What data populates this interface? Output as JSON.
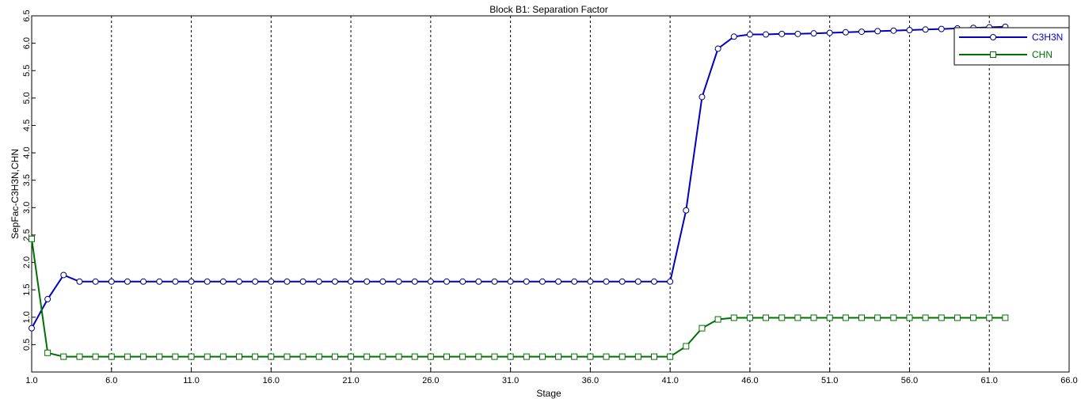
{
  "chart_data": {
    "type": "line",
    "title": "Block B1: Separation Factor",
    "xlabel": "Stage",
    "ylabel": "SepFac-C3H3N,CHN",
    "xlim": [
      1,
      66
    ],
    "ylim": [
      0,
      6.5
    ],
    "x_ticks": [
      "1.0",
      "6.0",
      "11.0",
      "16.0",
      "21.0",
      "26.0",
      "31.0",
      "36.0",
      "41.0",
      "46.0",
      "51.0",
      "56.0",
      "61.0",
      "66.0"
    ],
    "y_ticks": [
      "0.5",
      "1.0",
      "1.5",
      "2.0",
      "2.5",
      "3.0",
      "3.5",
      "4.0",
      "4.5",
      "5.0",
      "5.5",
      "6.0",
      "6.5"
    ],
    "grid": "vertical-dashed",
    "legend": "top-right",
    "series": [
      {
        "name": "C3H3N",
        "color": "#0000c0",
        "marker": "circle",
        "x": [
          1,
          2,
          3,
          4,
          5,
          6,
          7,
          8,
          9,
          10,
          11,
          12,
          13,
          14,
          15,
          16,
          17,
          18,
          19,
          20,
          21,
          22,
          23,
          24,
          25,
          26,
          27,
          28,
          29,
          30,
          31,
          32,
          33,
          34,
          35,
          36,
          37,
          38,
          39,
          40,
          41,
          42,
          43,
          44,
          45,
          46,
          47,
          48,
          49,
          50,
          51,
          52,
          53,
          54,
          55,
          56,
          57,
          58,
          59,
          60,
          61,
          62
        ],
        "values": [
          0.8,
          1.33,
          1.77,
          1.65,
          1.65,
          1.65,
          1.65,
          1.65,
          1.65,
          1.65,
          1.65,
          1.65,
          1.65,
          1.65,
          1.65,
          1.65,
          1.65,
          1.65,
          1.65,
          1.65,
          1.65,
          1.65,
          1.65,
          1.65,
          1.65,
          1.65,
          1.65,
          1.65,
          1.65,
          1.65,
          1.65,
          1.65,
          1.65,
          1.65,
          1.65,
          1.65,
          1.65,
          1.65,
          1.65,
          1.65,
          1.65,
          2.95,
          5.02,
          5.9,
          6.12,
          6.16,
          6.16,
          6.17,
          6.17,
          6.18,
          6.19,
          6.2,
          6.21,
          6.22,
          6.23,
          6.24,
          6.25,
          6.26,
          6.27,
          6.28,
          6.29,
          6.3
        ]
      },
      {
        "name": "CHN",
        "color": "#007000",
        "marker": "square",
        "x": [
          1,
          2,
          3,
          4,
          5,
          6,
          7,
          8,
          9,
          10,
          11,
          12,
          13,
          14,
          15,
          16,
          17,
          18,
          19,
          20,
          21,
          22,
          23,
          24,
          25,
          26,
          27,
          28,
          29,
          30,
          31,
          32,
          33,
          34,
          35,
          36,
          37,
          38,
          39,
          40,
          41,
          42,
          43,
          44,
          45,
          46,
          47,
          48,
          49,
          50,
          51,
          52,
          53,
          54,
          55,
          56,
          57,
          58,
          59,
          60,
          61,
          62
        ],
        "values": [
          2.43,
          0.35,
          0.28,
          0.28,
          0.28,
          0.28,
          0.28,
          0.28,
          0.28,
          0.28,
          0.28,
          0.28,
          0.28,
          0.28,
          0.28,
          0.28,
          0.28,
          0.28,
          0.28,
          0.28,
          0.28,
          0.28,
          0.28,
          0.28,
          0.28,
          0.28,
          0.28,
          0.28,
          0.28,
          0.28,
          0.28,
          0.28,
          0.28,
          0.28,
          0.28,
          0.28,
          0.28,
          0.28,
          0.28,
          0.28,
          0.28,
          0.47,
          0.8,
          0.96,
          0.99,
          0.99,
          0.99,
          0.99,
          0.99,
          0.99,
          0.99,
          0.99,
          0.99,
          0.99,
          0.99,
          0.99,
          0.99,
          0.99,
          0.99,
          0.99,
          0.99,
          0.99
        ]
      }
    ]
  }
}
